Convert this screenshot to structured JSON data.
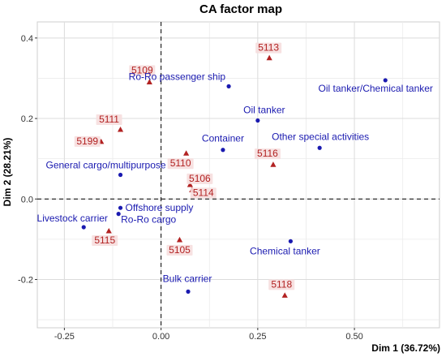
{
  "chart_data": {
    "type": "scatter",
    "title": "CA factor map",
    "xlabel": "Dim 1 (36.72%)",
    "ylabel": "Dim 2 (28.21%)",
    "xlim": [
      -0.32,
      0.72
    ],
    "ylim": [
      -0.32,
      0.44
    ],
    "x_ticks": [
      -0.25,
      0.0,
      0.25,
      0.5
    ],
    "x_tick_labels": [
      "-0.25",
      "0.00",
      "0.25",
      "0.50"
    ],
    "y_ticks": [
      -0.2,
      0.0,
      0.2,
      0.4
    ],
    "y_tick_labels": [
      "-0.2",
      "0.0",
      "0.2",
      "0.4"
    ],
    "grid": true,
    "reference_lines": {
      "x": 0,
      "y": 0,
      "style": "dashed"
    },
    "row_color": "#1a1ab0",
    "col_color": "#b22222",
    "rows": [
      {
        "label": "Ro-Ro passenger ship",
        "x": 0.175,
        "y": 0.28
      },
      {
        "label": "Oil tanker/Chemical tanker",
        "x": 0.58,
        "y": 0.295
      },
      {
        "label": "Oil tanker",
        "x": 0.25,
        "y": 0.195
      },
      {
        "label": "Container",
        "x": 0.16,
        "y": 0.122
      },
      {
        "label": "Other special activities",
        "x": 0.41,
        "y": 0.127
      },
      {
        "label": "General cargo/multipurpose",
        "x": -0.105,
        "y": 0.06
      },
      {
        "label": "Offshore supply",
        "x": -0.105,
        "y": -0.022
      },
      {
        "label": "Ro-Ro cargo",
        "x": -0.11,
        "y": -0.037
      },
      {
        "label": "Livestock carrier",
        "x": -0.2,
        "y": -0.07
      },
      {
        "label": "Chemical tanker",
        "x": 0.335,
        "y": -0.105
      },
      {
        "label": "Bulk carrier",
        "x": 0.07,
        "y": -0.23
      }
    ],
    "columns": [
      {
        "label": "5113",
        "x": 0.28,
        "y": 0.35
      },
      {
        "label": "5109",
        "x": -0.03,
        "y": 0.29
      },
      {
        "label": "5111",
        "x": -0.105,
        "y": 0.172
      },
      {
        "label": "5199",
        "x": -0.155,
        "y": 0.142
      },
      {
        "label": "5116",
        "x": 0.29,
        "y": 0.085
      },
      {
        "label": "5110",
        "x": 0.065,
        "y": 0.113
      },
      {
        "label": "5106",
        "x": 0.075,
        "y": 0.035
      },
      {
        "label": "5114",
        "x": 0.08,
        "y": 0.022
      },
      {
        "label": "5115",
        "x": -0.135,
        "y": -0.08
      },
      {
        "label": "5105",
        "x": 0.048,
        "y": -0.102
      },
      {
        "label": "5118",
        "x": 0.32,
        "y": -0.24
      }
    ]
  }
}
